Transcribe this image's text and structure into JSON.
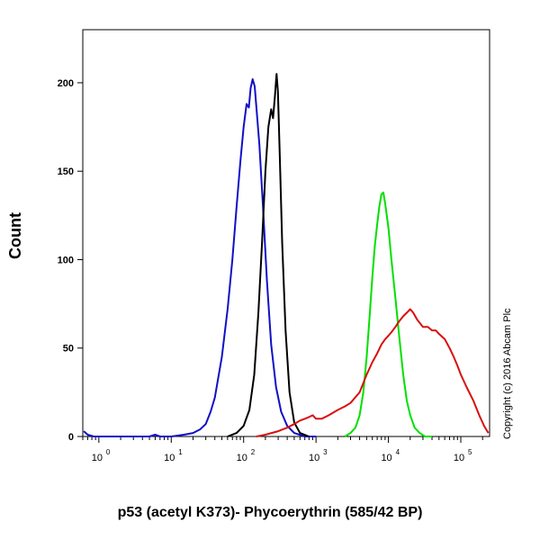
{
  "chart_data": {
    "type": "line",
    "xlabel": "p53 (acetyl K373)- Phycoerythrin (585/42 BP)",
    "ylabel": "Count",
    "x_scale": "log",
    "xlim": [
      0.6,
      250000
    ],
    "ylim": [
      0,
      230
    ],
    "yticks": [
      0,
      50,
      100,
      150,
      200
    ],
    "xticks": [
      {
        "value": 1,
        "base": "10",
        "exp": "0"
      },
      {
        "value": 10,
        "base": "10",
        "exp": "1"
      },
      {
        "value": 100,
        "base": "10",
        "exp": "2"
      },
      {
        "value": 1000,
        "base": "10",
        "exp": "3"
      },
      {
        "value": 10000,
        "base": "10",
        "exp": "4"
      },
      {
        "value": 100000,
        "base": "10",
        "exp": "5"
      }
    ],
    "annotation": "Copyright (c) 2016 Abcam Plc",
    "grid": false,
    "legend": "none",
    "series": [
      {
        "color": "#1010c8",
        "points": [
          [
            0.62,
            3
          ],
          [
            0.7,
            1
          ],
          [
            0.85,
            0
          ],
          [
            2,
            0
          ],
          [
            5,
            0
          ],
          [
            6,
            1
          ],
          [
            7,
            0
          ],
          [
            10,
            0
          ],
          [
            15,
            1
          ],
          [
            20,
            2
          ],
          [
            25,
            4
          ],
          [
            30,
            7
          ],
          [
            35,
            14
          ],
          [
            40,
            22
          ],
          [
            50,
            45
          ],
          [
            60,
            72
          ],
          [
            70,
            100
          ],
          [
            80,
            130
          ],
          [
            90,
            155
          ],
          [
            100,
            175
          ],
          [
            110,
            188
          ],
          [
            118,
            186
          ],
          [
            125,
            197
          ],
          [
            133,
            202
          ],
          [
            142,
            198
          ],
          [
            150,
            186
          ],
          [
            165,
            165
          ],
          [
            185,
            130
          ],
          [
            210,
            88
          ],
          [
            240,
            52
          ],
          [
            280,
            28
          ],
          [
            330,
            14
          ],
          [
            400,
            6
          ],
          [
            500,
            2
          ],
          [
            700,
            0
          ],
          [
            1000,
            0
          ]
        ]
      },
      {
        "color": "#000000",
        "points": [
          [
            60,
            0
          ],
          [
            80,
            2
          ],
          [
            100,
            6
          ],
          [
            120,
            15
          ],
          [
            140,
            35
          ],
          [
            160,
            70
          ],
          [
            180,
            110
          ],
          [
            200,
            150
          ],
          [
            220,
            175
          ],
          [
            240,
            185
          ],
          [
            255,
            180
          ],
          [
            270,
            192
          ],
          [
            285,
            205
          ],
          [
            298,
            195
          ],
          [
            315,
            160
          ],
          [
            340,
            110
          ],
          [
            380,
            60
          ],
          [
            430,
            25
          ],
          [
            500,
            8
          ],
          [
            600,
            2
          ],
          [
            800,
            0
          ]
        ]
      },
      {
        "color": "#00e000",
        "points": [
          [
            2500,
            0
          ],
          [
            3000,
            2
          ],
          [
            3500,
            5
          ],
          [
            4000,
            12
          ],
          [
            4500,
            25
          ],
          [
            5000,
            45
          ],
          [
            5500,
            68
          ],
          [
            6000,
            90
          ],
          [
            6500,
            108
          ],
          [
            7000,
            120
          ],
          [
            7500,
            130
          ],
          [
            8000,
            137
          ],
          [
            8500,
            138
          ],
          [
            9000,
            132
          ],
          [
            10000,
            118
          ],
          [
            11000,
            100
          ],
          [
            12500,
            78
          ],
          [
            14000,
            58
          ],
          [
            16000,
            35
          ],
          [
            18000,
            20
          ],
          [
            20000,
            12
          ],
          [
            23000,
            5
          ],
          [
            27000,
            2
          ],
          [
            32000,
            0
          ],
          [
            40000,
            0
          ]
        ]
      },
      {
        "color": "#d81010",
        "points": [
          [
            150,
            0
          ],
          [
            200,
            1
          ],
          [
            300,
            3
          ],
          [
            400,
            5
          ],
          [
            500,
            7
          ],
          [
            600,
            9
          ],
          [
            700,
            10
          ],
          [
            800,
            11
          ],
          [
            900,
            12
          ],
          [
            1000,
            10
          ],
          [
            1200,
            10
          ],
          [
            1500,
            12
          ],
          [
            2000,
            15
          ],
          [
            2500,
            17
          ],
          [
            3000,
            19
          ],
          [
            4000,
            25
          ],
          [
            5000,
            35
          ],
          [
            6000,
            42
          ],
          [
            7000,
            47
          ],
          [
            8000,
            52
          ],
          [
            9000,
            55
          ],
          [
            10000,
            57
          ],
          [
            11000,
            59
          ],
          [
            12500,
            62
          ],
          [
            14000,
            65
          ],
          [
            16000,
            68
          ],
          [
            18000,
            70
          ],
          [
            20000,
            72
          ],
          [
            22000,
            70
          ],
          [
            25000,
            66
          ],
          [
            30000,
            62
          ],
          [
            35000,
            62
          ],
          [
            40000,
            60
          ],
          [
            45000,
            60
          ],
          [
            50000,
            58
          ],
          [
            60000,
            55
          ],
          [
            70000,
            50
          ],
          [
            80000,
            45
          ],
          [
            90000,
            40
          ],
          [
            100000,
            35
          ],
          [
            120000,
            28
          ],
          [
            150000,
            20
          ],
          [
            180000,
            12
          ],
          [
            210000,
            6
          ],
          [
            240000,
            2
          ]
        ]
      }
    ]
  }
}
